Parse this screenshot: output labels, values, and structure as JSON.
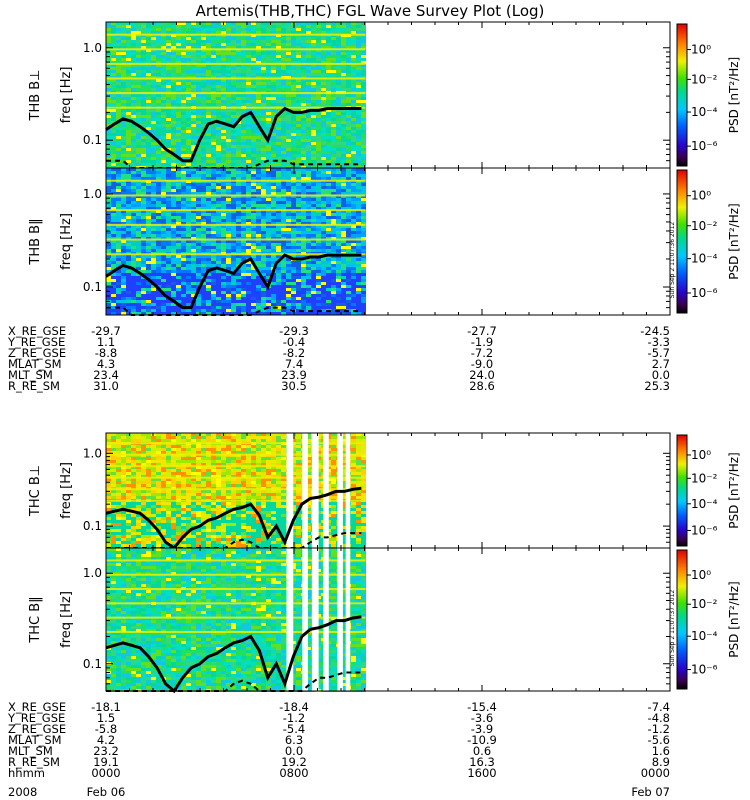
{
  "title": "Artemis(THB,THC) FGL Wave Survey Plot (Log)",
  "colorbar": {
    "label": "PSD [nT²/Hz]",
    "ticks": [
      "10⁰",
      "10⁻²",
      "10⁻⁴",
      "10⁻⁶"
    ],
    "stamp_b": "Sun Sep  2 11:07:36 2012",
    "stamp_c": "Sun Sep  2 11:07:37 2012"
  },
  "chart_data": [
    {
      "type": "heatmap",
      "probe": "THB",
      "component": "B⊥",
      "ylabel_probe": "THB B⊥",
      "ylabel_axis": "freq [Hz]",
      "ylim": [
        0.05,
        1.9
      ],
      "yscale": "log",
      "yticks": [
        {
          "value": 1.0,
          "label": "1.0"
        },
        {
          "value": 0.1,
          "label": "0.1"
        }
      ],
      "data_extent_fraction": 0.46,
      "base_level": "green",
      "cyclotron_solid": [
        0.13,
        0.15,
        0.17,
        0.16,
        0.14,
        0.12,
        0.1,
        0.08,
        0.07,
        0.06,
        0.06,
        0.1,
        0.15,
        0.16,
        0.15,
        0.14,
        0.18,
        0.2,
        0.14,
        0.1,
        0.18,
        0.22,
        0.2,
        0.2,
        0.21,
        0.21,
        0.22,
        0.22,
        0.22,
        0.22,
        0.22
      ],
      "cyclotron_dashed": [
        0.06,
        0.06,
        0.06,
        0.05,
        0.05,
        0.05,
        0.05,
        0.05,
        0.05,
        0.05,
        0.05,
        0.05,
        0.05,
        0.05,
        0.05,
        0.05,
        0.05,
        0.05,
        0.055,
        0.06,
        0.06,
        0.06,
        0.055,
        0.055,
        0.055,
        0.055,
        0.055,
        0.055,
        0.055,
        0.055,
        0.055
      ]
    },
    {
      "type": "heatmap",
      "probe": "THB",
      "component": "B‖",
      "ylabel_probe": "THB B‖",
      "ylabel_axis": "freq [Hz]",
      "ylim": [
        0.05,
        1.9
      ],
      "yscale": "log",
      "yticks": [
        {
          "value": 1.0,
          "label": "1.0"
        },
        {
          "value": 0.1,
          "label": "0.1"
        }
      ],
      "data_extent_fraction": 0.46,
      "base_level": "blue",
      "cyclotron_solid": [
        0.13,
        0.15,
        0.17,
        0.16,
        0.14,
        0.12,
        0.1,
        0.08,
        0.07,
        0.06,
        0.06,
        0.1,
        0.15,
        0.16,
        0.15,
        0.14,
        0.18,
        0.2,
        0.14,
        0.1,
        0.18,
        0.22,
        0.2,
        0.2,
        0.21,
        0.21,
        0.22,
        0.22,
        0.22,
        0.22,
        0.22
      ],
      "cyclotron_dashed": [
        0.06,
        0.06,
        0.06,
        0.05,
        0.05,
        0.05,
        0.05,
        0.05,
        0.05,
        0.05,
        0.05,
        0.05,
        0.05,
        0.05,
        0.05,
        0.05,
        0.05,
        0.05,
        0.055,
        0.06,
        0.06,
        0.06,
        0.055,
        0.055,
        0.055,
        0.055,
        0.055,
        0.055,
        0.055,
        0.055,
        0.055
      ]
    },
    {
      "type": "heatmap",
      "probe": "THC",
      "component": "B⊥",
      "ylabel_probe": "THC B⊥",
      "ylabel_axis": "freq [Hz]",
      "ylim": [
        0.05,
        1.9
      ],
      "yscale": "log",
      "yticks": [
        {
          "value": 1.0,
          "label": "1.0"
        },
        {
          "value": 0.1,
          "label": "0.1"
        }
      ],
      "data_extent_fraction": 0.46,
      "base_level": "yellow",
      "cyclotron_solid": [
        0.15,
        0.16,
        0.17,
        0.16,
        0.15,
        0.12,
        0.09,
        0.06,
        0.05,
        0.07,
        0.09,
        0.1,
        0.12,
        0.13,
        0.15,
        0.17,
        0.18,
        0.2,
        0.14,
        0.07,
        0.1,
        0.06,
        0.12,
        0.2,
        0.24,
        0.25,
        0.27,
        0.3,
        0.3,
        0.32,
        0.33
      ],
      "cyclotron_dashed": [
        0.05,
        0.05,
        0.05,
        0.05,
        0.05,
        0.05,
        0.05,
        0.05,
        0.05,
        0.05,
        0.05,
        0.05,
        0.05,
        0.05,
        0.05,
        0.06,
        0.065,
        0.06,
        0.05,
        0.05,
        0.05,
        0.05,
        0.05,
        0.05,
        0.06,
        0.07,
        0.07,
        0.075,
        0.08,
        0.08,
        0.08
      ]
    },
    {
      "type": "heatmap",
      "probe": "THC",
      "component": "B‖",
      "ylabel_probe": "THC B‖",
      "ylabel_axis": "freq [Hz]",
      "ylim": [
        0.05,
        1.9
      ],
      "yscale": "log",
      "yticks": [
        {
          "value": 1.0,
          "label": "1.0"
        },
        {
          "value": 0.1,
          "label": "0.1"
        }
      ],
      "data_extent_fraction": 0.46,
      "base_level": "green",
      "cyclotron_solid": [
        0.15,
        0.16,
        0.17,
        0.16,
        0.15,
        0.12,
        0.09,
        0.06,
        0.05,
        0.07,
        0.09,
        0.1,
        0.12,
        0.13,
        0.15,
        0.17,
        0.18,
        0.2,
        0.14,
        0.07,
        0.1,
        0.06,
        0.12,
        0.2,
        0.24,
        0.25,
        0.27,
        0.3,
        0.3,
        0.32,
        0.33
      ],
      "cyclotron_dashed": [
        0.05,
        0.05,
        0.05,
        0.05,
        0.05,
        0.05,
        0.05,
        0.05,
        0.05,
        0.05,
        0.05,
        0.05,
        0.05,
        0.05,
        0.05,
        0.06,
        0.065,
        0.06,
        0.05,
        0.05,
        0.05,
        0.05,
        0.05,
        0.05,
        0.06,
        0.07,
        0.07,
        0.075,
        0.08,
        0.08,
        0.08
      ]
    }
  ],
  "ephemeris_thb": [
    {
      "label": "X_RE_GSE",
      "values": [
        "-29.7",
        "-29.3",
        "-27.7",
        "-24.5"
      ]
    },
    {
      "label": "Y_RE_GSE",
      "values": [
        "1.1",
        "-0.4",
        "-1.9",
        "-3.3"
      ]
    },
    {
      "label": "Z_RE_GSE",
      "values": [
        "-8.8",
        "-8.2",
        "-7.2",
        "-5.7"
      ]
    },
    {
      "label": "MLAT_SM",
      "values": [
        "4.3",
        "7.4",
        "-9.0",
        "2.7"
      ]
    },
    {
      "label": "MLT_SM",
      "values": [
        "23.4",
        "23.9",
        "24.0",
        "0.0"
      ]
    },
    {
      "label": "R_RE_SM",
      "values": [
        "31.0",
        "30.5",
        "28.6",
        "25.3"
      ]
    }
  ],
  "ephemeris_thc": [
    {
      "label": "X_RE_GSE",
      "values": [
        "-18.1",
        "-18.4",
        "-15.4",
        "-7.4"
      ]
    },
    {
      "label": "Y_RE_GSE",
      "values": [
        "1.5",
        "-1.2",
        "-3.6",
        "-4.8"
      ]
    },
    {
      "label": "Z_RE_GSE",
      "values": [
        "-5.8",
        "-5.4",
        "-3.9",
        "-1.2"
      ]
    },
    {
      "label": "MLAT_SM",
      "values": [
        "4.2",
        "6.3",
        "-10.9",
        "-5.6"
      ]
    },
    {
      "label": "MLT_SM",
      "values": [
        "23.2",
        "0.0",
        "0.6",
        "1.6"
      ]
    },
    {
      "label": "R_RE_SM",
      "values": [
        "19.1",
        "19.2",
        "16.3",
        "8.9"
      ]
    },
    {
      "label": "hhmm",
      "values": [
        "0000",
        "0800",
        "1600",
        "0000"
      ]
    }
  ],
  "date_row": {
    "start": "2008",
    "start_date": "Feb 06",
    "end_date": "Feb 07"
  }
}
